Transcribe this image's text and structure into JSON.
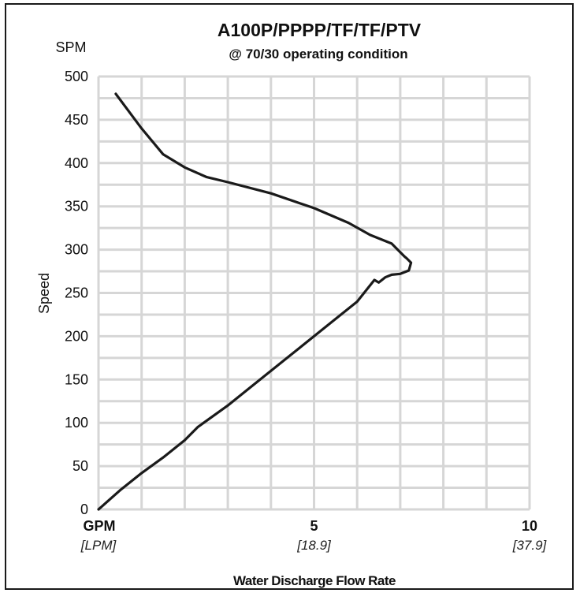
{
  "chart_data": {
    "type": "line",
    "title": "A100P/PPPP/TF/TF/PTV",
    "subtitle": "@ 70/30 operating condition",
    "ylabel": "Speed",
    "y_unit": "SPM",
    "xlabel": "Water Discharge Flow Rate",
    "x_unit_primary": "GPM",
    "x_unit_secondary": "[LPM]",
    "xlim": [
      0,
      10
    ],
    "ylim": [
      0,
      500
    ],
    "y_ticks": [
      0,
      50,
      100,
      150,
      200,
      250,
      300,
      350,
      400,
      450,
      500
    ],
    "x_ticks": [
      {
        "value": 5,
        "label": "5",
        "sublabel": "[18.9]"
      },
      {
        "value": 10,
        "label": "10",
        "sublabel": "[37.9]"
      }
    ],
    "grid": true,
    "series": [
      {
        "x": [
          0.0,
          0.5,
          1.0,
          1.5,
          2.0,
          2.3,
          3.0,
          3.5,
          4.0,
          4.5,
          5.0,
          5.5,
          6.0,
          6.4,
          6.5,
          6.65,
          6.75,
          6.8,
          7.0,
          7.2,
          7.25,
          7.15,
          7.1,
          7.0,
          6.8,
          6.3,
          5.8,
          5.0,
          4.0,
          3.0,
          2.5,
          2.0,
          1.5,
          1.0,
          0.4
        ],
        "y": [
          0,
          22,
          42,
          60,
          80,
          95,
          120,
          140,
          160,
          180,
          200,
          220,
          240,
          265,
          262,
          268,
          270,
          271,
          272,
          276,
          285,
          290,
          292,
          297,
          307,
          317,
          331,
          348,
          365,
          378,
          384,
          395,
          410,
          440,
          480
        ]
      }
    ]
  },
  "colors": {
    "grid": "#d6d6d6",
    "line": "#1a1a1a",
    "frame": "#1a1a1a"
  }
}
